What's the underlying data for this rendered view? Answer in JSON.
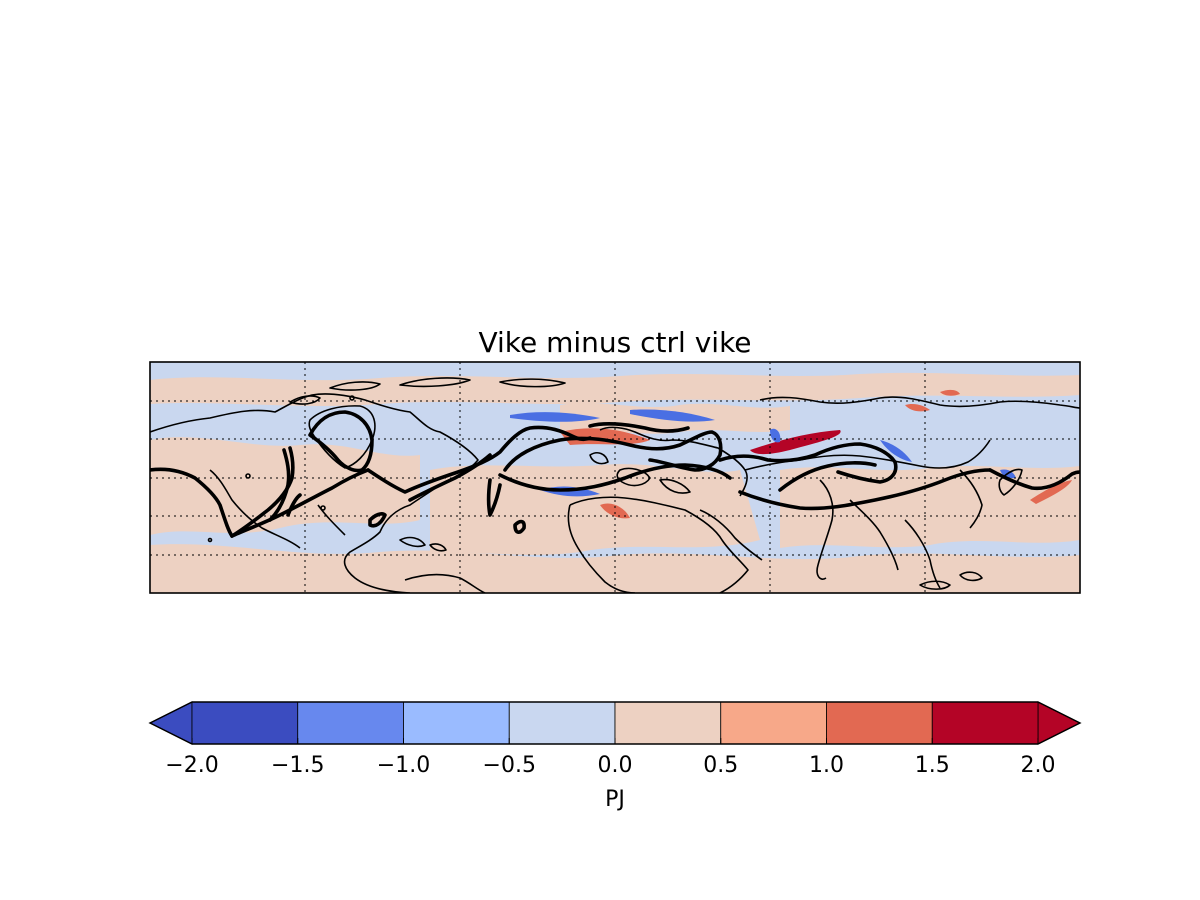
{
  "figure": {
    "title": "Vike minus ctrl vike"
  },
  "map": {
    "projection": "cylindrical",
    "gridlines": "dotted",
    "field_colors": {
      "negative_background": "#c9d7ef",
      "positive_background": "#edd1c2",
      "strong_positive": "#d6604d",
      "strong_negative": "#4a6fe3"
    },
    "coastline_color": "#000000",
    "contour_color": "#000000"
  },
  "colorbar": {
    "label": "PJ",
    "extend": "both",
    "ticks": [
      "−2.0",
      "−1.5",
      "−1.0",
      "−0.5",
      "0.0",
      "0.5",
      "1.0",
      "1.5",
      "2.0"
    ],
    "levels": [
      -2.0,
      -1.5,
      -1.0,
      -0.5,
      0.0,
      0.5,
      1.0,
      1.5,
      2.0
    ],
    "colors": [
      "#3b4cc0",
      "#6788ee",
      "#9abbff",
      "#c9d7f0",
      "#edd1c2",
      "#f7a889",
      "#e26952",
      "#b40426"
    ],
    "under_color": "#3b4cc0",
    "over_color": "#b40426"
  }
}
